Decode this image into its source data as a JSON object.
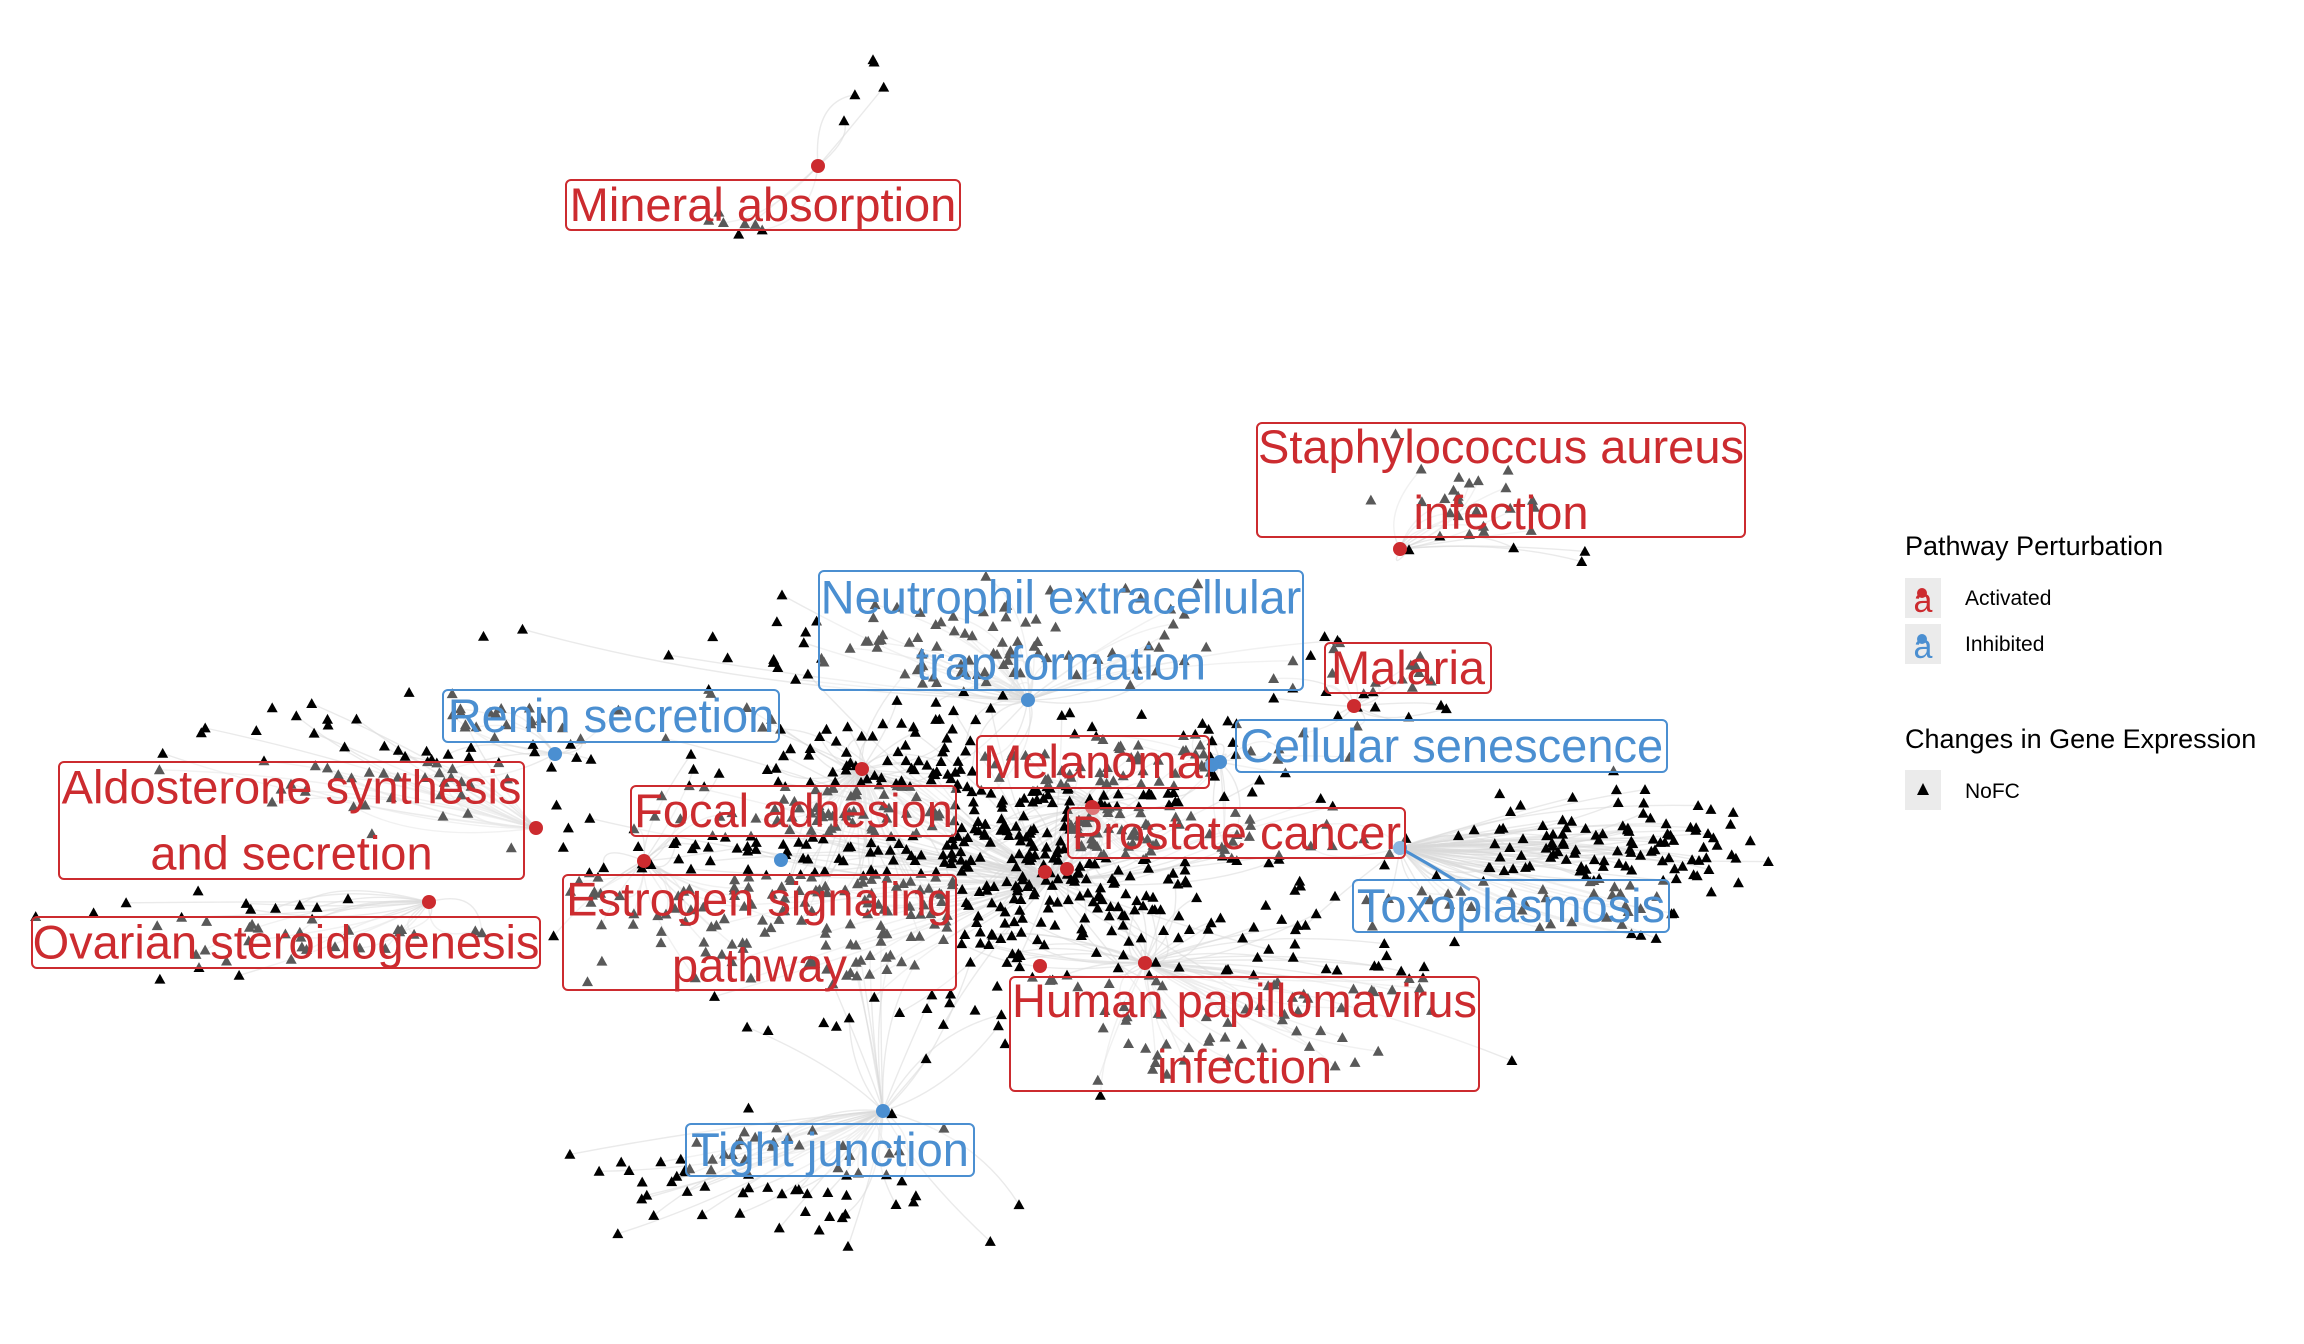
{
  "colors": {
    "activated": "#cc2b2f",
    "inhibited": "#4b8fd1",
    "gene": "#000000",
    "edge": "#d9d9d9"
  },
  "pathways": [
    {
      "id": "mineral",
      "lines": [
        "Mineral absorption"
      ],
      "status": "activated"
    },
    {
      "id": "staph",
      "lines": [
        "Staphylococcus aureus",
        "infection"
      ],
      "status": "activated"
    },
    {
      "id": "net",
      "lines": [
        "Neutrophil extracellular",
        "trap formation"
      ],
      "status": "inhibited"
    },
    {
      "id": "malaria",
      "lines": [
        "Malaria"
      ],
      "status": "activated"
    },
    {
      "id": "renin",
      "lines": [
        "Renin secretion"
      ],
      "status": "inhibited"
    },
    {
      "id": "melanoma",
      "lines": [
        "Melanoma"
      ],
      "status": "activated"
    },
    {
      "id": "senescence",
      "lines": [
        "Cellular senescence"
      ],
      "status": "inhibited"
    },
    {
      "id": "aldosterone",
      "lines": [
        "Aldosterone synthesis",
        "and secretion"
      ],
      "status": "activated"
    },
    {
      "id": "focal",
      "lines": [
        "Focal adhesion"
      ],
      "status": "activated"
    },
    {
      "id": "prostate",
      "lines": [
        "Prostate cancer"
      ],
      "status": "activated"
    },
    {
      "id": "estrogen",
      "lines": [
        "Estrogen signaling",
        "pathway"
      ],
      "status": "activated"
    },
    {
      "id": "toxo",
      "lines": [
        "Toxoplasmosis"
      ],
      "status": "inhibited"
    },
    {
      "id": "ovarian",
      "lines": [
        "Ovarian steroidogenesis"
      ],
      "status": "activated"
    },
    {
      "id": "hpv",
      "lines": [
        "Human papillomavirus",
        "infection"
      ],
      "status": "activated"
    },
    {
      "id": "tight",
      "lines": [
        "Tight junction"
      ],
      "status": "inhibited"
    }
  ],
  "legend": {
    "perturbation_title": "Pathway Perturbation",
    "perturbation_key_glyph": "a",
    "activated_label": "Activated",
    "inhibited_label": "Inhibited",
    "expression_title": "Changes in Gene Expression",
    "nofc_label": "NoFC"
  }
}
